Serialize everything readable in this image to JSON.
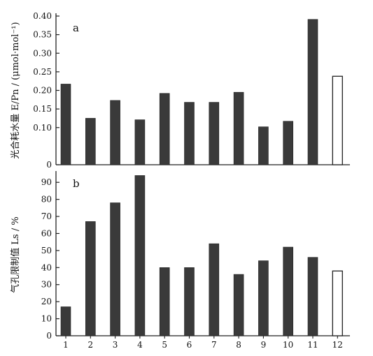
{
  "chart_data": [
    {
      "type": "bar",
      "panel_label": "a",
      "ylabel": "光合耗水量 E/Pn / (μmol·mol⁻¹)",
      "categories": [
        "1",
        "2",
        "3",
        "4",
        "5",
        "6",
        "7",
        "8",
        "9",
        "10",
        "11",
        "12"
      ],
      "values": [
        0.217,
        0.125,
        0.173,
        0.121,
        0.192,
        0.168,
        0.168,
        0.195,
        0.102,
        0.117,
        0.391,
        0.238
      ],
      "ylim": [
        0,
        0.4
      ],
      "yticks": [
        "0",
        "0.10",
        "0.15",
        "0.20",
        "0.25",
        "0.30",
        "0.35",
        "0.40"
      ],
      "bar_fill": [
        "#3a3a3a",
        "#3a3a3a",
        "#3a3a3a",
        "#3a3a3a",
        "#3a3a3a",
        "#3a3a3a",
        "#3a3a3a",
        "#3a3a3a",
        "#3a3a3a",
        "#3a3a3a",
        "#3a3a3a",
        "#ffffff"
      ],
      "grid": false
    },
    {
      "type": "bar",
      "panel_label": "b",
      "ylabel": "气孔限制值 Ls / %",
      "xlabel": "",
      "categories": [
        "1",
        "2",
        "3",
        "4",
        "5",
        "6",
        "7",
        "8",
        "9",
        "10",
        "11",
        "12"
      ],
      "values": [
        17,
        67,
        78,
        94,
        40,
        40,
        54,
        36,
        44,
        52,
        46,
        38
      ],
      "ylim": [
        0,
        95
      ],
      "yticks": [
        "0",
        "10",
        "20",
        "30",
        "40",
        "50",
        "60",
        "70",
        "80",
        "90"
      ],
      "bar_fill": [
        "#3a3a3a",
        "#3a3a3a",
        "#3a3a3a",
        "#3a3a3a",
        "#3a3a3a",
        "#3a3a3a",
        "#3a3a3a",
        "#3a3a3a",
        "#3a3a3a",
        "#3a3a3a",
        "#3a3a3a",
        "#ffffff"
      ],
      "grid": false
    }
  ],
  "colors": {
    "axis": "#222222",
    "bar": "#3a3a3a",
    "bar_open": "#ffffff"
  }
}
